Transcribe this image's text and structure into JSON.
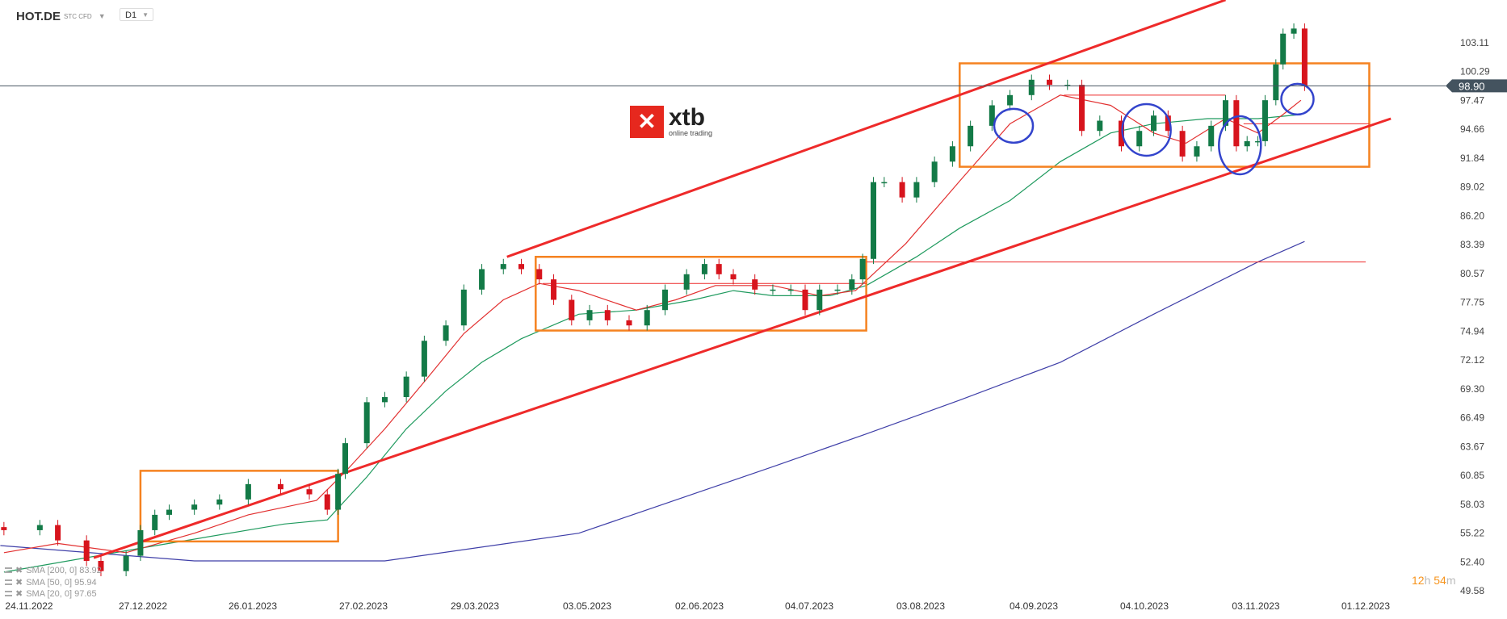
{
  "header": {
    "symbol": "HOT.DE",
    "instrument_type": "STC CFD",
    "timeframe": "D1"
  },
  "logo": {
    "brand": "xtb",
    "tagline": "online trading",
    "mark": "✕"
  },
  "timer": {
    "hours": "12",
    "h": "h",
    "minutes": "54",
    "m": "m"
  },
  "legend": [
    {
      "label": "SMA [200, 0] 83.92",
      "color": "#3f3fa8"
    },
    {
      "label": "SMA [50, 0] 95.94",
      "color": "#1f9a5e"
    },
    {
      "label": "SMA [20, 0] 97.65",
      "color": "#e23030"
    }
  ],
  "colors": {
    "up": "#137a47",
    "down": "#d7141d",
    "channel": "#ee2a2a",
    "box": "#f58220",
    "circle": "#3344cc",
    "price_tag": "#44535f"
  },
  "chart_data": {
    "type": "candlestick",
    "current_price": "98.90",
    "y_ticks": [
      "103.11",
      "100.29",
      "97.47",
      "94.66",
      "91.84",
      "89.02",
      "86.20",
      "83.39",
      "80.57",
      "77.75",
      "74.94",
      "72.12",
      "69.30",
      "66.49",
      "63.67",
      "60.85",
      "58.03",
      "55.22",
      "52.40",
      "49.58"
    ],
    "x_ticks": [
      "24.11.2022",
      "27.12.2022",
      "26.01.2023",
      "27.02.2023",
      "29.03.2023",
      "03.05.2023",
      "02.06.2023",
      "04.07.2023",
      "03.08.2023",
      "04.09.2023",
      "04.10.2023",
      "03.11.2023",
      "01.12.2023"
    ],
    "candles": [
      [
        "2022-11-17",
        55.5
      ],
      [
        "2022-11-27",
        56
      ],
      [
        "2022-12-02",
        54.5
      ],
      [
        "2022-12-10",
        52.5
      ],
      [
        "2022-12-14",
        51.5
      ],
      [
        "2022-12-21",
        53
      ],
      [
        "2022-12-25",
        55.5
      ],
      [
        "2022-12-29",
        57
      ],
      [
        "2023-01-02",
        57.5
      ],
      [
        "2023-01-09",
        58
      ],
      [
        "2023-01-16",
        58.5
      ],
      [
        "2023-01-24",
        60
      ],
      [
        "2023-02-02",
        59.5
      ],
      [
        "2023-02-10",
        59
      ],
      [
        "2023-02-15",
        57.5
      ],
      [
        "2023-02-18",
        61
      ],
      [
        "2023-02-20",
        64
      ],
      [
        "2023-02-26",
        68
      ],
      [
        "2023-03-03",
        68.5
      ],
      [
        "2023-03-09",
        70.5
      ],
      [
        "2023-03-14",
        74
      ],
      [
        "2023-03-20",
        75.5
      ],
      [
        "2023-03-25",
        79
      ],
      [
        "2023-03-30",
        81
      ],
      [
        "2023-04-05",
        81.5
      ],
      [
        "2023-04-10",
        81
      ],
      [
        "2023-04-15",
        80
      ],
      [
        "2023-04-19",
        78
      ],
      [
        "2023-04-24",
        76
      ],
      [
        "2023-04-29",
        77
      ],
      [
        "2023-05-04",
        76
      ],
      [
        "2023-05-10",
        75.5
      ],
      [
        "2023-05-15",
        77
      ],
      [
        "2023-05-20",
        79
      ],
      [
        "2023-05-26",
        80.5
      ],
      [
        "2023-05-31",
        81.5
      ],
      [
        "2023-06-04",
        80.5
      ],
      [
        "2023-06-08",
        80
      ],
      [
        "2023-06-14",
        79
      ],
      [
        "2023-06-19",
        79
      ],
      [
        "2023-06-24",
        79
      ],
      [
        "2023-06-28",
        77
      ],
      [
        "2023-07-02",
        79
      ],
      [
        "2023-07-07",
        79
      ],
      [
        "2023-07-11",
        80
      ],
      [
        "2023-07-14",
        82
      ],
      [
        "2023-07-17",
        89.5
      ],
      [
        "2023-07-20",
        89.5
      ],
      [
        "2023-07-25",
        88
      ],
      [
        "2023-07-29",
        89.5
      ],
      [
        "2023-08-03",
        91.5
      ],
      [
        "2023-08-08",
        93
      ],
      [
        "2023-08-13",
        95
      ],
      [
        "2023-08-19",
        97
      ],
      [
        "2023-08-24",
        98
      ],
      [
        "2023-08-30",
        99.5
      ],
      [
        "2023-09-04",
        99
      ],
      [
        "2023-09-09",
        99
      ],
      [
        "2023-09-13",
        94.5
      ],
      [
        "2023-09-18",
        95.5
      ],
      [
        "2023-09-24",
        93
      ],
      [
        "2023-09-29",
        94.5
      ],
      [
        "2023-10-03",
        96
      ],
      [
        "2023-10-07",
        94.5
      ],
      [
        "2023-10-11",
        92
      ],
      [
        "2023-10-15",
        93
      ],
      [
        "2023-10-19",
        95
      ],
      [
        "2023-10-23",
        97.5
      ],
      [
        "2023-10-26",
        93
      ],
      [
        "2023-10-29",
        93.5
      ],
      [
        "2023-11-01",
        93.5
      ],
      [
        "2023-11-03",
        97.5
      ],
      [
        "2023-11-06",
        101
      ],
      [
        "2023-11-08",
        104
      ],
      [
        "2023-11-11",
        104.5
      ],
      [
        "2023-11-14",
        98.9
      ]
    ],
    "series": [
      {
        "name": "SMA [200, 0]",
        "color": "#3f3fa8",
        "points": [
          [
            "2022-11-16",
            54.0
          ],
          [
            "2023-01-09",
            52.5
          ],
          [
            "2023-03-03",
            52.5
          ],
          [
            "2023-04-26",
            55.2
          ],
          [
            "2023-06-19",
            61.7
          ],
          [
            "2023-07-15",
            64.9
          ],
          [
            "2023-08-10",
            68.2
          ],
          [
            "2023-09-07",
            71.9
          ],
          [
            "2023-10-03",
            76.6
          ],
          [
            "2023-11-01",
            81.7
          ],
          [
            "2023-11-14",
            83.7
          ]
        ]
      },
      {
        "name": "SMA [50, 0]",
        "color": "#1f9a5e",
        "points": [
          [
            "2022-11-17",
            51.4
          ],
          [
            "2022-12-26",
            53.8
          ],
          [
            "2023-02-03",
            56.1
          ],
          [
            "2023-02-15",
            56.5
          ],
          [
            "2023-02-26",
            60.7
          ],
          [
            "2023-03-09",
            65.4
          ],
          [
            "2023-03-20",
            69.1
          ],
          [
            "2023-03-30",
            71.9
          ],
          [
            "2023-04-10",
            74.2
          ],
          [
            "2023-04-26",
            76.6
          ],
          [
            "2023-05-12",
            77.0
          ],
          [
            "2023-05-28",
            78.0
          ],
          [
            "2023-06-08",
            78.9
          ],
          [
            "2023-06-19",
            78.4
          ],
          [
            "2023-07-05",
            78.4
          ],
          [
            "2023-07-15",
            79.4
          ],
          [
            "2023-07-29",
            82.2
          ],
          [
            "2023-08-10",
            85.0
          ],
          [
            "2023-08-24",
            87.7
          ],
          [
            "2023-09-07",
            91.5
          ],
          [
            "2023-09-21",
            94.3
          ],
          [
            "2023-10-03",
            95.2
          ],
          [
            "2023-10-18",
            95.7
          ],
          [
            "2023-11-01",
            95.7
          ],
          [
            "2023-11-13",
            96.1
          ]
        ]
      },
      {
        "name": "SMA [20, 0]",
        "color": "#e23030",
        "points": [
          [
            "2022-11-17",
            53.3
          ],
          [
            "2022-12-02",
            54.2
          ],
          [
            "2022-12-21",
            53.3
          ],
          [
            "2023-01-09",
            55.2
          ],
          [
            "2023-01-24",
            57.0
          ],
          [
            "2023-02-12",
            58.4
          ],
          [
            "2023-02-20",
            61.2
          ],
          [
            "2023-03-03",
            65.4
          ],
          [
            "2023-03-14",
            70.0
          ],
          [
            "2023-03-25",
            74.7
          ],
          [
            "2023-04-05",
            78.0
          ],
          [
            "2023-04-15",
            79.6
          ],
          [
            "2023-04-26",
            78.9
          ],
          [
            "2023-05-12",
            77.0
          ],
          [
            "2023-05-23",
            78.0
          ],
          [
            "2023-06-03",
            79.4
          ],
          [
            "2023-06-19",
            79.4
          ],
          [
            "2023-07-02",
            78.4
          ],
          [
            "2023-07-12",
            78.9
          ],
          [
            "2023-07-26",
            83.5
          ],
          [
            "2023-08-10",
            89.6
          ],
          [
            "2023-08-24",
            95.2
          ],
          [
            "2023-09-07",
            98.0
          ],
          [
            "2023-09-21",
            97.0
          ],
          [
            "2023-10-03",
            94.3
          ],
          [
            "2023-10-12",
            93.3
          ],
          [
            "2023-10-23",
            95.7
          ],
          [
            "2023-11-01",
            94.3
          ],
          [
            "2023-11-08",
            96.1
          ],
          [
            "2023-11-13",
            97.5
          ]
        ]
      }
    ]
  }
}
